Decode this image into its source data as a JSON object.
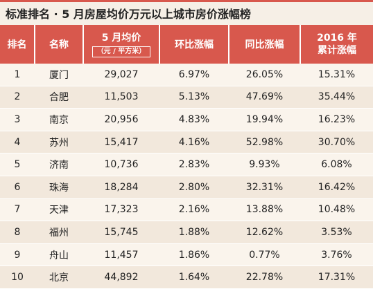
{
  "title": "标准排名 · 5 月房屋均价万元以上城市房价涨幅榜",
  "headers": {
    "rank": "排名",
    "city": "名称",
    "price": "5 月均价",
    "price_unit": "（元 / 平方米）",
    "mom": "环比涨幅",
    "yoy": "同比涨幅",
    "ytd_line1": "2016 年",
    "ytd_line2": "累计涨幅"
  },
  "rows": [
    {
      "rank": "1",
      "city": "厦门",
      "price": "29,027",
      "mom": "6.97%",
      "yoy": "26.05%",
      "ytd": "15.31%"
    },
    {
      "rank": "2",
      "city": "合肥",
      "price": "11,503",
      "mom": "5.13%",
      "yoy": "47.69%",
      "ytd": "35.44%"
    },
    {
      "rank": "3",
      "city": "南京",
      "price": "20,956",
      "mom": "4.83%",
      "yoy": "19.94%",
      "ytd": "16.23%"
    },
    {
      "rank": "4",
      "city": "苏州",
      "price": "15,417",
      "mom": "4.16%",
      "yoy": "52.98%",
      "ytd": "30.70%"
    },
    {
      "rank": "5",
      "city": "济南",
      "price": "10,736",
      "mom": "2.83%",
      "yoy": "9.93%",
      "ytd": "6.08%"
    },
    {
      "rank": "6",
      "city": "珠海",
      "price": "18,284",
      "mom": "2.80%",
      "yoy": "32.31%",
      "ytd": "16.42%"
    },
    {
      "rank": "7",
      "city": "天津",
      "price": "17,323",
      "mom": "2.16%",
      "yoy": "13.88%",
      "ytd": "10.48%"
    },
    {
      "rank": "8",
      "city": "福州",
      "price": "15,745",
      "mom": "1.88%",
      "yoy": "12.62%",
      "ytd": "3.53%"
    },
    {
      "rank": "9",
      "city": "舟山",
      "price": "11,457",
      "mom": "1.86%",
      "yoy": "0.77%",
      "ytd": "3.76%"
    },
    {
      "rank": "10",
      "city": "北京",
      "price": "44,892",
      "mom": "1.64%",
      "yoy": "22.78%",
      "ytd": "17.31%"
    }
  ],
  "colors": {
    "header_bg": "#d8584d",
    "row_light": "#faf4ec",
    "row_dark": "#f2e8dc",
    "title_bg": "#f6efe6"
  }
}
